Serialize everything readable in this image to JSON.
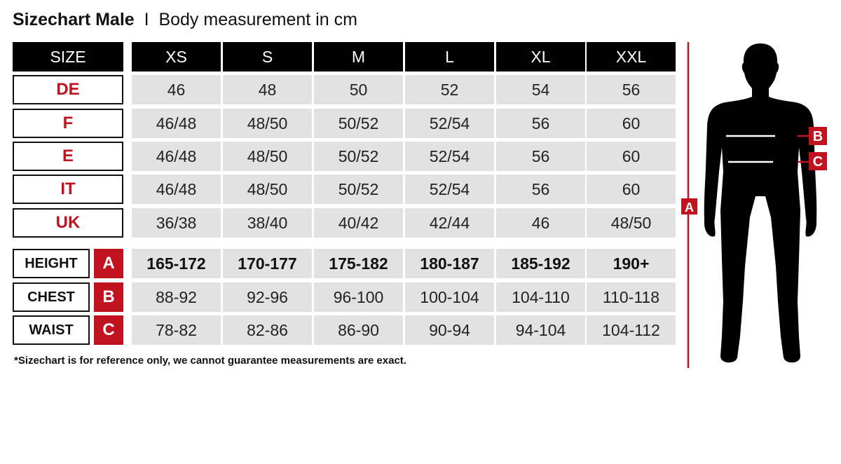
{
  "title": {
    "bold": "Sizechart Male",
    "separator": "I",
    "subtitle": "Body measurement in cm"
  },
  "header": {
    "label": "SIZE",
    "sizes": [
      "XS",
      "S",
      "M",
      "L",
      "XL",
      "XXL"
    ]
  },
  "conversion_rows": [
    {
      "label": "DE",
      "values": [
        "46",
        "48",
        "50",
        "52",
        "54",
        "56"
      ]
    },
    {
      "label": "F",
      "values": [
        "46/48",
        "48/50",
        "50/52",
        "52/54",
        "56",
        "60"
      ]
    },
    {
      "label": "E",
      "values": [
        "46/48",
        "48/50",
        "50/52",
        "52/54",
        "56",
        "60"
      ]
    },
    {
      "label": "IT",
      "values": [
        "46/48",
        "48/50",
        "50/52",
        "52/54",
        "56",
        "60"
      ]
    },
    {
      "label": "UK",
      "values": [
        "36/38",
        "38/40",
        "40/42",
        "42/44",
        "46",
        "48/50"
      ]
    }
  ],
  "measurement_rows": [
    {
      "label": "HEIGHT",
      "letter": "A",
      "values": [
        "165-172",
        "170-177",
        "175-182",
        "180-187",
        "185-192",
        "190+"
      ]
    },
    {
      "label": "CHEST",
      "letter": "B",
      "values": [
        "88-92",
        "92-96",
        "96-100",
        "100-104",
        "104-110",
        "110-118"
      ]
    },
    {
      "label": "WAIST",
      "letter": "C",
      "values": [
        "78-82",
        "82-86",
        "86-90",
        "90-94",
        "94-104",
        "104-112"
      ]
    }
  ],
  "footnote": "*Sizechart is for reference only, we cannot guarantee measurements are exact.",
  "figure": {
    "height_marker": "A",
    "chest_marker": "B",
    "waist_marker": "C"
  },
  "colors": {
    "accent": "#c1121f",
    "header": "#000000",
    "cell": "#e2e2e2"
  }
}
